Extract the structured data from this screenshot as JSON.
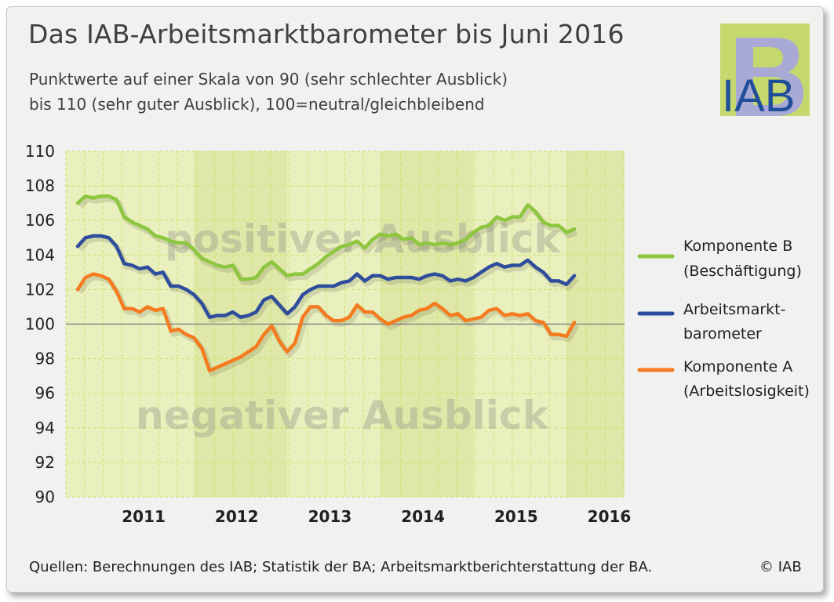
{
  "title": "Das IAB-Arbeitsmarktbarometer bis Juni 2016",
  "subtitle_line1": "Punktwerte auf einer Skala von 90 (sehr schlechter Ausblick)",
  "subtitle_line2": "bis 110 (sehr guter Ausblick), 100=neutral/gleichbleibend",
  "footer": "Quellen: Berechnungen des IAB; Statistik der BA; Arbeitsmarktberichterstattung der BA.",
  "copyright": "© IAB",
  "logo_text": "IAB",
  "colors": {
    "komponente_b": "#8dc63f",
    "barometer": "#2e4d9c",
    "komponente_a": "#f47b20",
    "plot_bg": "#e9f0be",
    "plot_bg_alt": "#dfe8a8",
    "grid": "#cfe070",
    "neutral_line": "#8a8a8a",
    "logo_green": "#c5d86d",
    "logo_purple": "#a9a9d6",
    "logo_blue": "#1f4e9a"
  },
  "chart_data": {
    "type": "line",
    "ylim": [
      90,
      110
    ],
    "yticks": [
      "90",
      "92",
      "94",
      "96",
      "98",
      "100",
      "102",
      "104",
      "106",
      "108",
      "110"
    ],
    "year_labels": [
      "2011",
      "2012",
      "2013",
      "2014",
      "2015",
      "2016"
    ],
    "x_start": "2010-10",
    "x_end": "2016-06",
    "background_labels": [
      "positiver Ausblick",
      "negativer Ausblick"
    ],
    "series": [
      {
        "name": "Komponente B (Beschäftigung)",
        "legend_line1": "Komponente B",
        "legend_line2": "(Beschäftigung)",
        "values": [
          107.0,
          107.4,
          107.3,
          107.4,
          107.4,
          107.2,
          106.2,
          105.9,
          105.7,
          105.5,
          105.1,
          105.0,
          104.8,
          104.7,
          104.7,
          104.3,
          103.8,
          103.6,
          103.4,
          103.3,
          103.4,
          102.6,
          102.6,
          102.7,
          103.3,
          103.6,
          103.2,
          102.8,
          102.9,
          102.9,
          103.2,
          103.5,
          103.9,
          104.2,
          104.5,
          104.6,
          104.8,
          104.4,
          104.9,
          105.2,
          105.1,
          105.2,
          104.9,
          105.0,
          104.6,
          104.7,
          104.6,
          104.7,
          104.6,
          104.7,
          104.9,
          105.3,
          105.6,
          105.7,
          106.2,
          106.0,
          106.2,
          106.2,
          106.9,
          106.5,
          105.9,
          105.7,
          105.7,
          105.3,
          105.5
        ]
      },
      {
        "name": "Arbeitsmarktbarometer",
        "legend_line1": "Arbeitsmarkt-",
        "legend_line2": "barometer",
        "values": [
          104.5,
          105.0,
          105.1,
          105.1,
          105.0,
          104.5,
          103.5,
          103.4,
          103.2,
          103.3,
          102.9,
          103.0,
          102.2,
          102.2,
          102.0,
          101.7,
          101.2,
          100.4,
          100.5,
          100.5,
          100.7,
          100.4,
          100.5,
          100.7,
          101.4,
          101.6,
          101.1,
          100.6,
          101.0,
          101.7,
          102.0,
          102.2,
          102.2,
          102.2,
          102.4,
          102.5,
          102.9,
          102.5,
          102.8,
          102.8,
          102.6,
          102.7,
          102.7,
          102.7,
          102.6,
          102.8,
          102.9,
          102.8,
          102.5,
          102.6,
          102.5,
          102.7,
          103.0,
          103.3,
          103.5,
          103.3,
          103.4,
          103.4,
          103.7,
          103.3,
          103.0,
          102.5,
          102.5,
          102.3,
          102.8
        ]
      },
      {
        "name": "Komponente A (Arbeitslosigkeit)",
        "legend_line1": "Komponente A",
        "legend_line2": "(Arbeitslosigkeit)",
        "values": [
          102.0,
          102.7,
          102.9,
          102.8,
          102.6,
          101.9,
          100.9,
          100.9,
          100.7,
          101.0,
          100.8,
          100.9,
          99.6,
          99.7,
          99.4,
          99.2,
          98.6,
          97.3,
          97.5,
          97.7,
          97.9,
          98.1,
          98.4,
          98.7,
          99.4,
          99.9,
          99.0,
          98.4,
          98.9,
          100.4,
          101.0,
          101.0,
          100.5,
          100.2,
          100.2,
          100.4,
          101.1,
          100.7,
          100.7,
          100.3,
          100.0,
          100.2,
          100.4,
          100.5,
          100.8,
          100.9,
          101.2,
          100.9,
          100.5,
          100.6,
          100.2,
          100.3,
          100.4,
          100.8,
          100.9,
          100.5,
          100.6,
          100.5,
          100.6,
          100.2,
          100.1,
          99.4,
          99.4,
          99.3,
          100.1
        ]
      }
    ]
  }
}
